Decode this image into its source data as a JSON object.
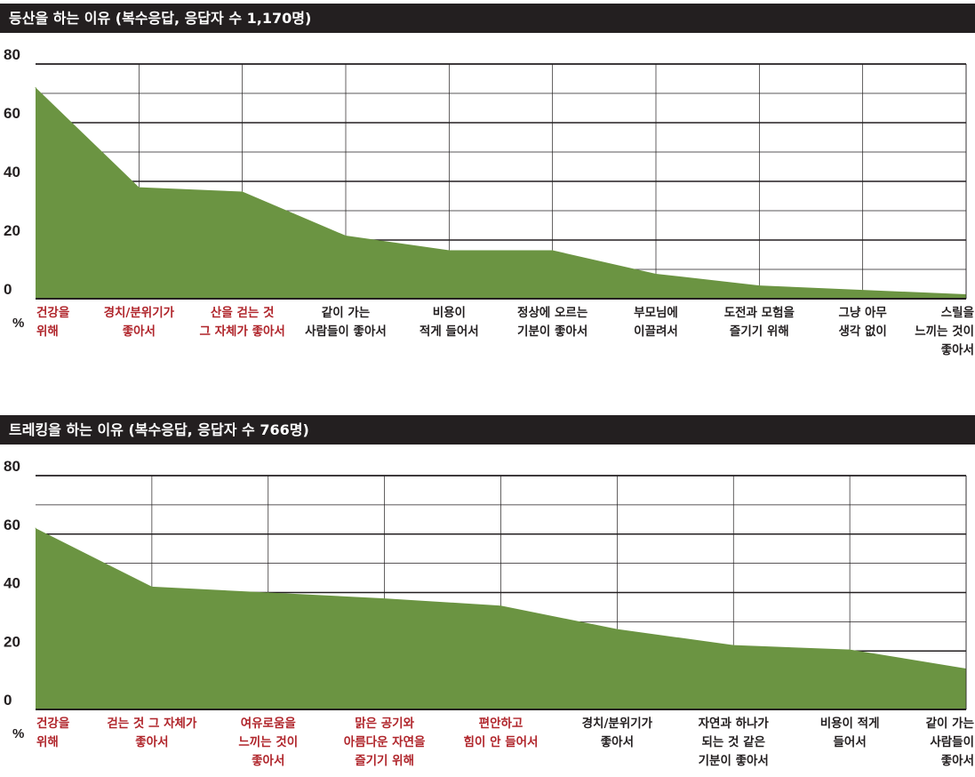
{
  "chart_data": [
    {
      "type": "area",
      "title": "등산을 하는 이유 (복수응답, 응답자 수 1,170명)",
      "ylabel": "%",
      "ylim": [
        0,
        80
      ],
      "yticks": [
        0,
        20,
        40,
        60,
        80
      ],
      "grid": true,
      "fill_color": "#6b9442",
      "highlight_color": "#b0252b",
      "text_color": "#231f20",
      "categories": [
        {
          "lines": [
            "건강을",
            "위해"
          ],
          "highlight": true
        },
        {
          "lines": [
            "경치/분위기가",
            "좋아서"
          ],
          "highlight": true
        },
        {
          "lines": [
            "산을 걷는 것",
            "그 자체가 좋아서"
          ],
          "highlight": true
        },
        {
          "lines": [
            "같이 가는",
            "사람들이 좋아서"
          ],
          "highlight": false
        },
        {
          "lines": [
            "비용이",
            "적게 들어서"
          ],
          "highlight": false
        },
        {
          "lines": [
            "정상에 오르는",
            "기분이 좋아서"
          ],
          "highlight": false
        },
        {
          "lines": [
            "부모님에",
            "이끌려서"
          ],
          "highlight": false
        },
        {
          "lines": [
            "도전과 모험을",
            "즐기기 위해"
          ],
          "highlight": false
        },
        {
          "lines": [
            "그냥 아무",
            "생각 없이"
          ],
          "highlight": false
        },
        {
          "lines": [
            "스릴을",
            "느끼는 것이",
            "좋아서"
          ],
          "highlight": false
        }
      ],
      "values": [
        72,
        38,
        36.5,
        21.5,
        16.5,
        16.5,
        8.5,
        4.5,
        3,
        1.5
      ]
    },
    {
      "type": "area",
      "title": "트레킹을 하는 이유 (복수응답, 응답자 수 766명)",
      "ylabel": "%",
      "ylim": [
        0,
        80
      ],
      "yticks": [
        0,
        20,
        40,
        60,
        80
      ],
      "grid": true,
      "fill_color": "#6b9442",
      "highlight_color": "#b0252b",
      "text_color": "#231f20",
      "categories": [
        {
          "lines": [
            "건강을",
            "위해"
          ],
          "highlight": true
        },
        {
          "lines": [
            "걷는 것 그 자체가",
            "좋아서"
          ],
          "highlight": true
        },
        {
          "lines": [
            "여유로움을",
            "느끼는 것이",
            "좋아서"
          ],
          "highlight": true
        },
        {
          "lines": [
            "맑은 공기와",
            "아름다운 자연을",
            "즐기기 위해"
          ],
          "highlight": true
        },
        {
          "lines": [
            "편안하고",
            "힘이 안 들어서"
          ],
          "highlight": true
        },
        {
          "lines": [
            "경치/분위기가",
            "좋아서"
          ],
          "highlight": false
        },
        {
          "lines": [
            "자연과 하나가",
            "되는 것 같은",
            "기분이 좋아서"
          ],
          "highlight": false
        },
        {
          "lines": [
            "비용이 적게",
            "들어서"
          ],
          "highlight": false
        },
        {
          "lines": [
            "같이 가는",
            "사람들이",
            "좋아서"
          ],
          "highlight": false
        }
      ],
      "values": [
        62,
        42,
        40,
        38,
        35.5,
        27.5,
        22,
        20.5,
        14
      ]
    }
  ]
}
